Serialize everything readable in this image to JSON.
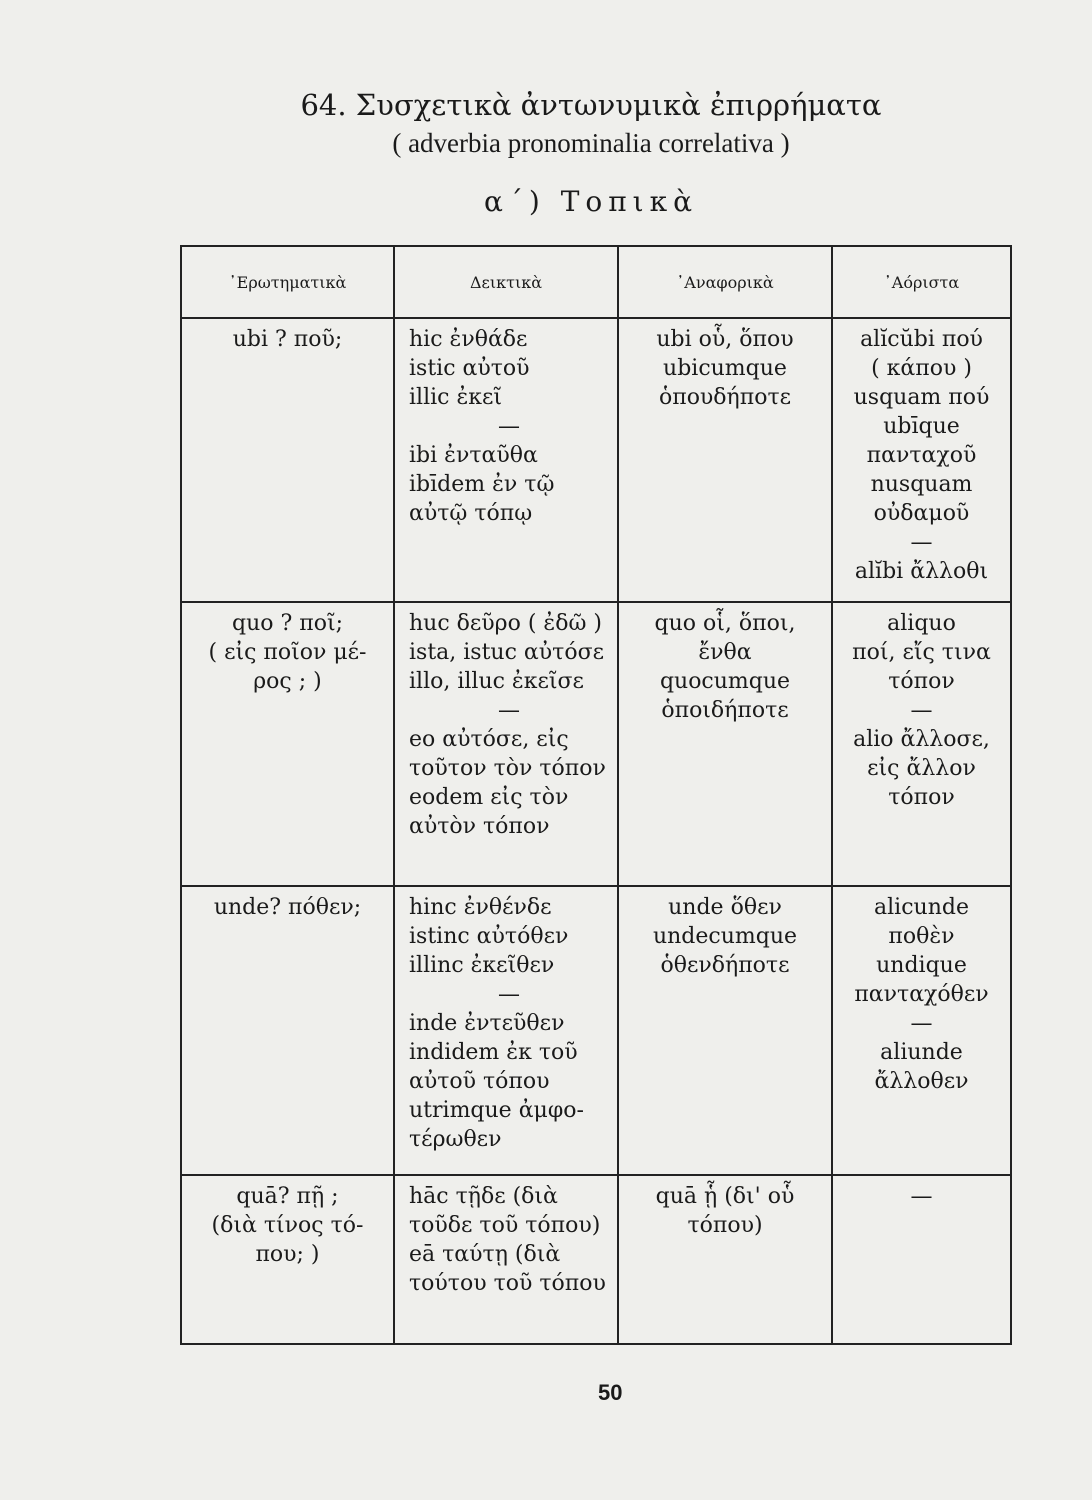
{
  "heading": {
    "title": "64. Συσχετικὰ ἀντωνυμικὰ ἐπιρρήματα",
    "subtitle": "( adverbia pronominalia correlativa )",
    "section": "α΄) Τοπικὰ"
  },
  "table": {
    "headers": [
      "᾿Ερωτηματικὰ",
      "Δεικτικὰ",
      "᾿Αναφορικὰ",
      "᾿Αόριστα"
    ],
    "rows": [
      [
        [
          "ubi ? ποῦ;"
        ],
        [
          "hic ἐνθάδε",
          "istic αὐτοῦ",
          "illic ἐκεῖ",
          "—",
          "ibi ἐνταῦθα",
          "ibīdem ἐν τῷ",
          "αὐτῷ τόπῳ"
        ],
        [
          "ubi οὗ, ὅπου",
          "ubicumque",
          "ὁπουδήποτε"
        ],
        [
          "alĭcŭbi πού",
          "( κάπου )",
          "usquam πού",
          "ubīque",
          "πανταχοῦ",
          "nusquam",
          "οὐδαμοῦ",
          "—",
          "alĭbi ἄλλοθι"
        ]
      ],
      [
        [
          "quo ?  ποῖ;",
          "( εἰς ποῖον μέ-",
          "ρος ; )"
        ],
        [
          "huc δεῦρο ( ἐδῶ )",
          "ista, istuc αὐτόσε",
          "illo,  illuc ἐκεῖσε",
          "—",
          "eo αὐτόσε, εἰς",
          "τοῦτον τὸν τόπον",
          "eodem εἰς τὸν",
          "αὐτὸν τόπον"
        ],
        [
          "quo οἷ, ὅποι,",
          "ἔνθα",
          "quocumque",
          "ὁποιδήποτε"
        ],
        [
          "aliquo",
          "ποί, εἴς τινα",
          "τόπον",
          "—",
          "alio ἄλλοσε,",
          "εἰς ἄλλον",
          "τόπον"
        ]
      ],
      [
        [
          "unde? πόθεν;"
        ],
        [
          "hinc ἐνθένδε",
          "istinc αὐτόθεν",
          "illinc ἐκεῖθεν",
          "—",
          "inde ἐντεῦθεν",
          "indidem ἐκ τοῦ",
          "αὐτοῦ τόπου",
          "utrimque ἀμφο-",
          "τέρωθεν"
        ],
        [
          "unde ὅθεν",
          "undecumque",
          "ὁθενδήποτε"
        ],
        [
          "alicunde",
          "ποθὲν",
          "undique",
          "πανταχόθεν",
          "—",
          "aliunde",
          "ἄλλοθεν"
        ]
      ],
      [
        [
          "quā? πῇ ;",
          "(διὰ τίνος τό-",
          "που; )"
        ],
        [
          "hāc τῇδε (διὰ",
          "τοῦδε τοῦ τόπου)",
          "eā ταύτῃ (διὰ",
          "τούτου τοῦ τόπου"
        ],
        [
          "quā ᾗ (δι' οὗ",
          "τόπου)"
        ],
        [
          "—"
        ]
      ]
    ]
  },
  "page_number": "50"
}
